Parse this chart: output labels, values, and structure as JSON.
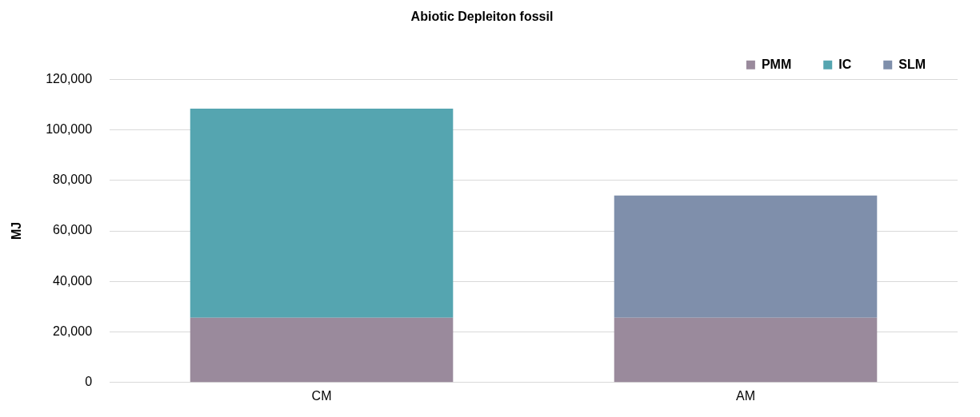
{
  "chart_data": {
    "type": "bar",
    "title": "Abiotic Depleiton fossil",
    "ylabel": "MJ",
    "categories": [
      "CM",
      "AM"
    ],
    "stacked": true,
    "series": [
      {
        "name": "PMM",
        "color": "#9a8a9c",
        "values": [
          25600,
          25600
        ]
      },
      {
        "name": "IC",
        "color": "#55a5b0",
        "values": [
          82800,
          null
        ]
      },
      {
        "name": "SLM",
        "color": "#7f8fab",
        "values": [
          null,
          48400
        ]
      }
    ],
    "ylim": [
      0,
      120000
    ],
    "yticks": [
      {
        "value": 0,
        "label": "0"
      },
      {
        "value": 20000,
        "label": "20,000"
      },
      {
        "value": 40000,
        "label": "40,000"
      },
      {
        "value": 60000,
        "label": "60,000"
      },
      {
        "value": 80000,
        "label": "80,000"
      },
      {
        "value": 100000,
        "label": "100,000"
      },
      {
        "value": 120000,
        "label": "120,000"
      }
    ],
    "grid": "y",
    "legend": "top right"
  }
}
